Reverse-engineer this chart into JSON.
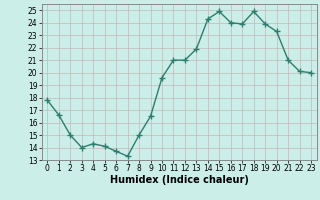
{
  "x": [
    0,
    1,
    2,
    3,
    4,
    5,
    6,
    7,
    8,
    9,
    10,
    11,
    12,
    13,
    14,
    15,
    16,
    17,
    18,
    19,
    20,
    21,
    22,
    23
  ],
  "y": [
    17.8,
    16.6,
    15.0,
    14.0,
    14.3,
    14.1,
    13.7,
    13.3,
    15.0,
    16.5,
    19.6,
    21.0,
    21.0,
    21.9,
    24.3,
    24.9,
    24.0,
    23.9,
    24.9,
    23.9,
    23.3,
    21.0,
    20.1,
    20.0
  ],
  "line_color": "#2e7d6e",
  "marker": "+",
  "marker_size": 4,
  "bg_color": "#cceee8",
  "grid_color_major": "#c4b8b8",
  "grid_color_minor": "#c4b8b8",
  "xlabel": "Humidex (Indice chaleur)",
  "ylim": [
    13,
    25.5
  ],
  "xlim": [
    -0.5,
    23.5
  ],
  "yticks": [
    13,
    14,
    15,
    16,
    17,
    18,
    19,
    20,
    21,
    22,
    23,
    24,
    25
  ],
  "xticks": [
    0,
    1,
    2,
    3,
    4,
    5,
    6,
    7,
    8,
    9,
    10,
    11,
    12,
    13,
    14,
    15,
    16,
    17,
    18,
    19,
    20,
    21,
    22,
    23
  ],
  "tick_fontsize": 5.5,
  "xlabel_fontsize": 7,
  "line_width": 1.0
}
